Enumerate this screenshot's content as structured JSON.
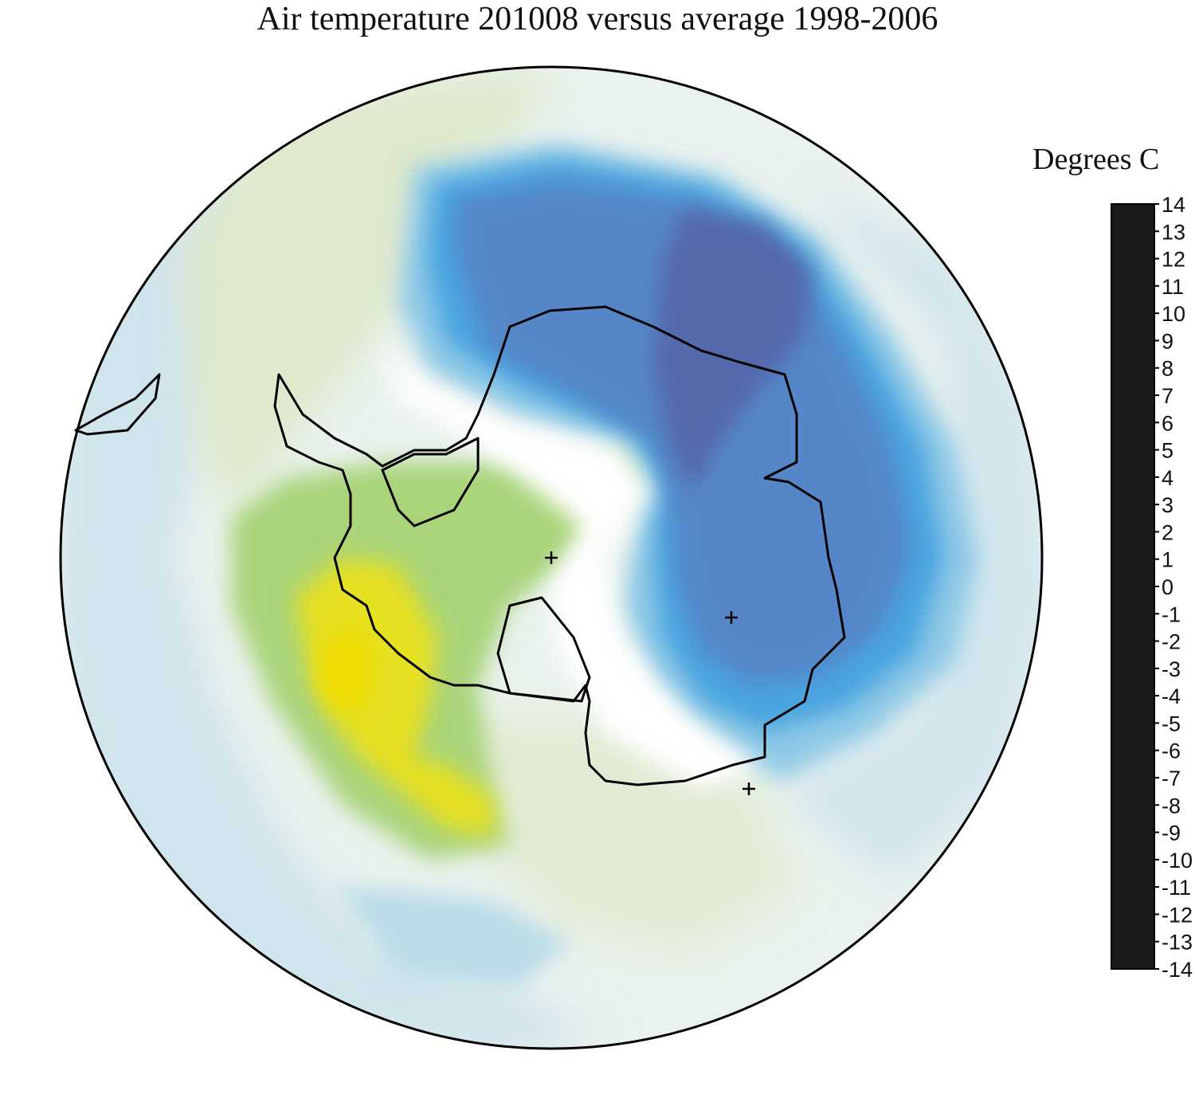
{
  "title": "Air temperature 201008 versus average 1998-2006",
  "legend": {
    "title": "Degrees C",
    "ticks": [
      "14",
      "13",
      "12",
      "11",
      "10",
      "9",
      "8",
      "7",
      "6",
      "5",
      "4",
      "3",
      "2",
      "1",
      "0",
      "-1",
      "-2",
      "-3",
      "-4",
      "-5",
      "-6",
      "-7",
      "-8",
      "-9",
      "-10",
      "-11",
      "-12",
      "-13",
      "-14"
    ],
    "range": [
      -14,
      14
    ],
    "color_stops": [
      {
        "value": -14,
        "color": "#1a1a1a"
      },
      {
        "value": -13,
        "color": "#1e1b2e"
      },
      {
        "value": -11,
        "color": "#2a1f5e"
      },
      {
        "value": -9,
        "color": "#3d2f80"
      },
      {
        "value": -7,
        "color": "#4a4f9e"
      },
      {
        "value": -5,
        "color": "#4f6fb8"
      },
      {
        "value": -4,
        "color": "#5584c8"
      },
      {
        "value": -3,
        "color": "#3d9ee0"
      },
      {
        "value": -2,
        "color": "#63bce6"
      },
      {
        "value": -1,
        "color": "#a9d6e8"
      },
      {
        "value": -0.4,
        "color": "#e2eef2"
      },
      {
        "value": 0,
        "color": "#ffffff"
      },
      {
        "value": 0.4,
        "color": "#eef3e2"
      },
      {
        "value": 1,
        "color": "#d4e6b8"
      },
      {
        "value": 2,
        "color": "#9fcf68"
      },
      {
        "value": 3,
        "color": "#c8dc3a"
      },
      {
        "value": 4,
        "color": "#e8e020"
      },
      {
        "value": 5,
        "color": "#f2dc00"
      },
      {
        "value": 6,
        "color": "#f0b030"
      },
      {
        "value": 7,
        "color": "#e98a30"
      },
      {
        "value": 8,
        "color": "#e46a2a"
      },
      {
        "value": 9,
        "color": "#e04a2c"
      },
      {
        "value": 10,
        "color": "#df2f30"
      },
      {
        "value": 11,
        "color": "#dd2a3a"
      },
      {
        "value": 12,
        "color": "#e03070"
      },
      {
        "value": 13,
        "color": "#e0408a"
      },
      {
        "value": 14,
        "color": "#c86aa8"
      }
    ]
  },
  "colors": {
    "outline": "#000000",
    "strong_cold": "#4f6fb8",
    "cold": "#3d9ee0",
    "cool": "#a9d6e8",
    "light_cool": "#dbeaf0",
    "light_warm": "#e8efd9",
    "warm": "#c9dfa8",
    "warmer": "#9fcf68",
    "hot": "#e8e020"
  }
}
